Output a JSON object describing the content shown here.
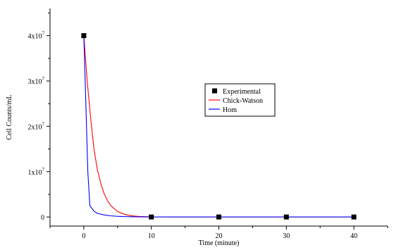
{
  "chart_data": {
    "type": "line",
    "xlabel": "Time (minute)",
    "ylabel": "Cell Counts/mL",
    "xlim": [
      -5,
      45
    ],
    "ylim": [
      -2000000,
      46000000
    ],
    "x_ticks": [
      0,
      10,
      20,
      30,
      40
    ],
    "y_ticks": [
      {
        "value": 0,
        "label": "0",
        "sup": ""
      },
      {
        "value": 10000000,
        "label": "1x10",
        "sup": "7"
      },
      {
        "value": 20000000,
        "label": "2x10",
        "sup": "7"
      },
      {
        "value": 30000000,
        "label": "3x10",
        "sup": "7"
      },
      {
        "value": 40000000,
        "label": "4x10",
        "sup": "7"
      }
    ],
    "grid": false,
    "legend_position": "center-right",
    "series": [
      {
        "name": "Experimental",
        "kind": "scatter",
        "marker": "square",
        "color": "#000000",
        "x": [
          0,
          10,
          20,
          30,
          40
        ],
        "y": [
          40000000,
          0,
          0,
          0,
          0
        ]
      },
      {
        "name": "Chick-Watson",
        "kind": "line",
        "color": "#ff0000",
        "x": [
          0,
          0.5,
          1,
          1.5,
          2,
          2.5,
          3,
          3.5,
          4,
          5,
          6,
          7,
          8,
          10,
          15,
          20,
          30,
          40
        ],
        "y": [
          40000000,
          30000000,
          22000000,
          15000000,
          10500000,
          7500000,
          5200000,
          3600000,
          2500000,
          1200000,
          600000,
          280000,
          130000,
          30000,
          0,
          0,
          0,
          0
        ]
      },
      {
        "name": "Hom",
        "kind": "line",
        "color": "#0000ff",
        "x": [
          0,
          0.3,
          0.6,
          0.9,
          1.5,
          2,
          3,
          4,
          5,
          6,
          8,
          10,
          15,
          20,
          30,
          40
        ],
        "y": [
          40000000,
          25000000,
          10000000,
          2500000,
          1300000,
          800000,
          450000,
          250000,
          150000,
          80000,
          30000,
          10000,
          0,
          0,
          0,
          0
        ]
      }
    ]
  }
}
